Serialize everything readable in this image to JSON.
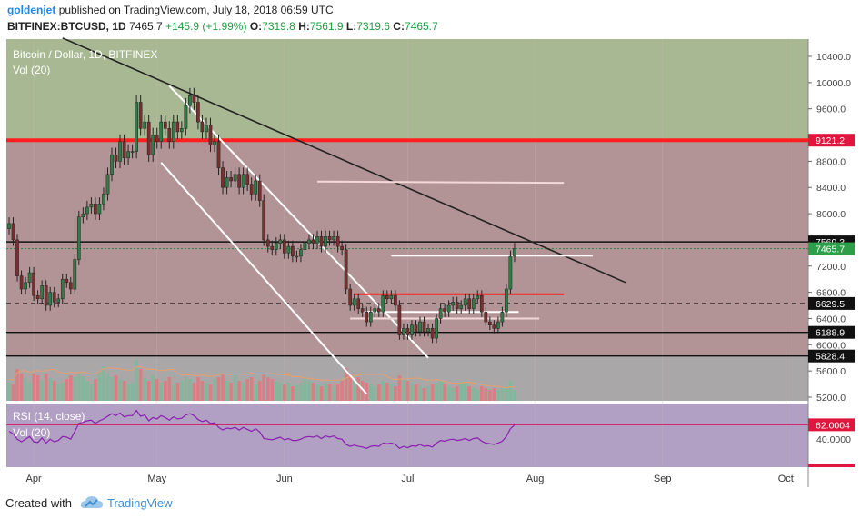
{
  "header": {
    "author": "goldenjet",
    "published": "published on TradingView.com, July 18, 2018 06:59 UTC",
    "symbol": "BITFINEX:BTCUSD, 1D",
    "last": "7465.7",
    "change": "+145.9 (+1.99%)",
    "o_label": "O:",
    "o": "7319.8",
    "h_label": "H:",
    "h": "7561.9",
    "l_label": "L:",
    "l": "7319.6",
    "c_label": "C:",
    "c": "7465.7"
  },
  "footer": {
    "created_with": "Created with",
    "brand": "TradingView"
  },
  "colors": {
    "green_zone": "#a8b892",
    "red_zone": "#b39496",
    "rsi_bg": "#b1a0c3",
    "up": "#2e7d46",
    "down": "#7a2e2e",
    "vol_up": "#7fb89a",
    "vol_down": "#e07a80",
    "red_line": "#ff1f1f",
    "rsi_line": "#8a1fb0"
  },
  "chart_data": {
    "type": "candlestick",
    "title": "Bitcoin / Dollar, 1D, BITFINEX",
    "volume_label": "Vol (20)",
    "rsi_label": "RSI (14, close)",
    "rsi_vol_label": "Vol (20)",
    "x_ticks": [
      "Apr",
      "May",
      "Jun",
      "Jul",
      "Aug",
      "Sep",
      "Oct"
    ],
    "y_ticks": [
      "10400.0",
      "10000.0",
      "9600.0",
      "8800.0",
      "8400.0",
      "8000.0",
      "7200.0",
      "6800.0",
      "6400.0",
      "6000.0",
      "5600.0",
      "5200.0"
    ],
    "rsi_ticks": [
      "40.0000"
    ],
    "price_labels": [
      {
        "value": 9121.2,
        "text": "9121.2",
        "style": "red"
      },
      {
        "value": 7569.3,
        "text": "7569.3",
        "style": "black"
      },
      {
        "value": 7465.7,
        "text": "7465.7",
        "style": "green"
      },
      {
        "value": 6629.5,
        "text": "6629.5",
        "style": "black"
      },
      {
        "value": 6188.9,
        "text": "6188.9",
        "style": "black"
      },
      {
        "value": 5828.4,
        "text": "5828.4",
        "style": "black"
      }
    ],
    "rsi_current": {
      "value": 62.0004,
      "text": "62.0004"
    },
    "horizontal_levels": [
      9121.2,
      7569.3,
      6629.5,
      6188.9,
      5828.4
    ],
    "closes": [
      7850,
      7600,
      7050,
      6850,
      6950,
      7100,
      6750,
      6700,
      6900,
      6600,
      6800,
      6650,
      6700,
      7000,
      6950,
      6850,
      7300,
      7950,
      8000,
      8100,
      8150,
      8000,
      8150,
      8300,
      8600,
      8900,
      8800,
      9100,
      8850,
      8950,
      8950,
      9700,
      9300,
      9400,
      8900,
      9200,
      9100,
      9400,
      9300,
      9100,
      9400,
      9250,
      9300,
      9650,
      9800,
      9700,
      9400,
      9250,
      9350,
      9050,
      9100,
      8700,
      8400,
      8550,
      8500,
      8600,
      8400,
      8600,
      8450,
      8300,
      8500,
      8200,
      7600,
      7500,
      7450,
      7550,
      7600,
      7400,
      7500,
      7350,
      7350,
      7450,
      7550,
      7600,
      7550,
      7650,
      7500,
      7650,
      7600,
      7650,
      7500,
      7450,
      6850,
      6600,
      6700,
      6550,
      6500,
      6350,
      6500,
      6550,
      6500,
      6750,
      6700,
      6750,
      6600,
      6150,
      6250,
      6150,
      6300,
      6200,
      6350,
      6200,
      6250,
      6100,
      6400,
      6550,
      6500,
      6600,
      6650,
      6550,
      6600,
      6700,
      6550,
      6700,
      6750,
      6500,
      6350,
      6300,
      6250,
      6350,
      6500,
      6850,
      7350,
      7466
    ],
    "volume": [
      20,
      18,
      35,
      30,
      25,
      20,
      30,
      28,
      22,
      30,
      25,
      22,
      18,
      20,
      24,
      28,
      26,
      30,
      27,
      22,
      18,
      24,
      32,
      38,
      30,
      26,
      28,
      24,
      22,
      18,
      20,
      45,
      35,
      25,
      22,
      28,
      24,
      20,
      22,
      26,
      18,
      20,
      22,
      26,
      24,
      20,
      26,
      22,
      20,
      18,
      24,
      26,
      30,
      22,
      20,
      28,
      22,
      20,
      24,
      26,
      18,
      22,
      30,
      26,
      24,
      22,
      20,
      18,
      20,
      16,
      18,
      20,
      24,
      22,
      20,
      18,
      16,
      20,
      18,
      16,
      18,
      22,
      36,
      30,
      24,
      26,
      22,
      20,
      18,
      16,
      18,
      22,
      20,
      18,
      16,
      28,
      24,
      22,
      20,
      18,
      16,
      14,
      16,
      18,
      20,
      22,
      18,
      16,
      14,
      16,
      18,
      20,
      16,
      14,
      12,
      16,
      14,
      12,
      14,
      12,
      14,
      16,
      22,
      12
    ],
    "rsi": [
      52,
      48,
      40,
      36,
      40,
      44,
      36,
      35,
      42,
      34,
      40,
      36,
      38,
      44,
      43,
      40,
      52,
      64,
      66,
      68,
      69,
      64,
      68,
      71,
      75,
      79,
      76,
      80,
      74,
      76,
      76,
      84,
      75,
      77,
      68,
      73,
      71,
      76,
      73,
      69,
      74,
      71,
      72,
      77,
      79,
      76,
      70,
      67,
      69,
      64,
      65,
      58,
      54,
      57,
      56,
      58,
      54,
      58,
      55,
      52,
      56,
      51,
      41,
      40,
      39,
      41,
      43,
      39,
      41,
      38,
      38,
      40,
      43,
      44,
      43,
      45,
      41,
      45,
      43,
      45,
      41,
      40,
      32,
      29,
      31,
      29,
      28,
      26,
      29,
      30,
      29,
      34,
      33,
      34,
      32,
      26,
      29,
      27,
      30,
      29,
      32,
      29,
      30,
      28,
      34,
      38,
      37,
      39,
      40,
      38,
      39,
      41,
      38,
      41,
      42,
      37,
      34,
      33,
      32,
      34,
      37,
      44,
      56,
      62
    ]
  }
}
